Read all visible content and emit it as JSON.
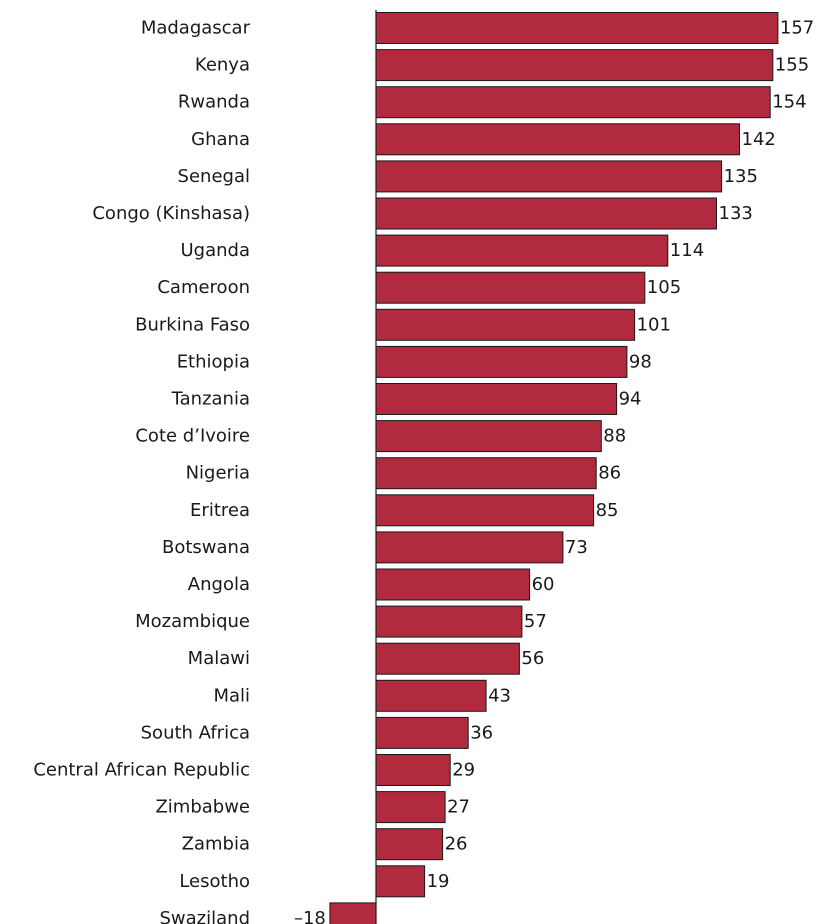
{
  "chart_data": {
    "type": "bar",
    "orientation": "horizontal",
    "title": "",
    "xlabel": "",
    "ylabel": "",
    "bar_color": "#b22a3e",
    "grid": false,
    "legend": "none",
    "categories": [
      "Madagascar",
      "Kenya",
      "Rwanda",
      "Ghana",
      "Senegal",
      "Congo (Kinshasa)",
      "Uganda",
      "Cameroon",
      "Burkina Faso",
      "Ethiopia",
      "Tanzania",
      "Cote d’Ivoire",
      "Nigeria",
      "Eritrea",
      "Botswana",
      "Angola",
      "Mozambique",
      "Malawi",
      "Mali",
      "South Africa",
      "Central African Republic",
      "Zimbabwe",
      "Zambia",
      "Lesotho",
      "Swaziland"
    ],
    "values": [
      157,
      155,
      154,
      142,
      135,
      133,
      114,
      105,
      101,
      98,
      94,
      88,
      86,
      85,
      73,
      60,
      57,
      56,
      43,
      36,
      29,
      27,
      26,
      19,
      -18
    ],
    "value_labels": [
      "157",
      "155",
      "154",
      "142",
      "135",
      "133",
      "114",
      "105",
      "101",
      "98",
      "94",
      "88",
      "86",
      "85",
      "73",
      "60",
      "57",
      "56",
      "43",
      "36",
      "29",
      "27",
      "26",
      "19",
      "–18"
    ]
  }
}
